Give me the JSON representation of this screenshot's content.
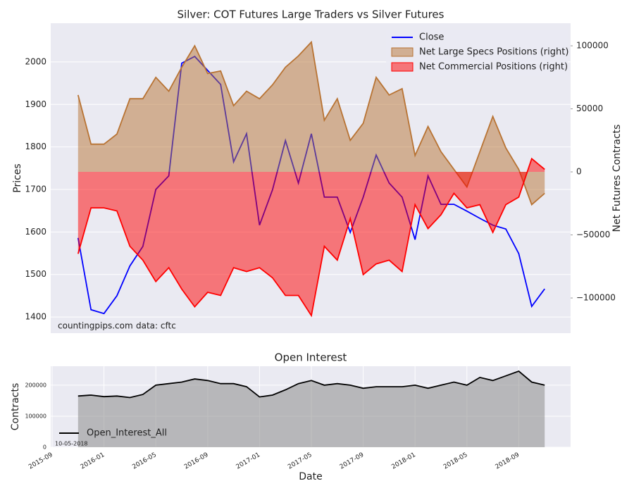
{
  "chart_data": [
    {
      "type": "line",
      "title": "Silver: COT Futures Large Traders vs Silver Futures",
      "ylabel": "Prices",
      "y2label": "Net Futures Contracts",
      "annotations": [
        "countingpips.com",
        "data: cftc"
      ],
      "x": [
        "2015-11",
        "2015-12",
        "2016-01",
        "2016-02",
        "2016-03",
        "2016-04",
        "2016-05",
        "2016-06",
        "2016-07",
        "2016-08",
        "2016-09",
        "2016-10",
        "2016-11",
        "2016-12",
        "2017-01",
        "2017-02",
        "2017-03",
        "2017-04",
        "2017-05",
        "2017-06",
        "2017-07",
        "2017-08",
        "2017-09",
        "2017-10",
        "2017-11",
        "2017-12",
        "2018-01",
        "2018-02",
        "2018-03",
        "2018-04",
        "2018-05",
        "2018-06",
        "2018-07",
        "2018-08",
        "2018-09",
        "2018-10",
        "2018-11"
      ],
      "xlim": [
        "2015-09",
        "2019-01"
      ],
      "ylim": [
        1362,
        2091
      ],
      "yticks": [
        1400,
        1500,
        1600,
        1700,
        1800,
        1900,
        2000
      ],
      "y2lim": [
        -127900,
        117900
      ],
      "y2ticks": [
        {
          "value": -100000,
          "label": "−100000"
        },
        {
          "value": -50000,
          "label": "−50000"
        },
        0,
        50000,
        100000
      ],
      "grid": true,
      "legend": "upper right",
      "series": [
        {
          "name": "Close",
          "color": "#0000ff",
          "values": [
            1586,
            1417,
            1408,
            1450,
            1520,
            1566,
            1700,
            1732,
            1997,
            2013,
            1980,
            1947,
            1765,
            1831,
            1616,
            1699,
            1815,
            1715,
            1831,
            1682,
            1682,
            1599,
            1682,
            1781,
            1715,
            1682,
            1582,
            1732,
            1665,
            1665,
            1649,
            1632,
            1616,
            1607,
            1549,
            1425,
            1466
          ]
        },
        {
          "name": "Net Large Specs Positions (right)",
          "color": "#b87333",
          "axis": "y2",
          "fill": true,
          "values": [
            61000,
            22000,
            22000,
            30000,
            58000,
            58000,
            75000,
            64000,
            83000,
            100000,
            78000,
            80000,
            52500,
            64000,
            58000,
            69000,
            83000,
            92000,
            103000,
            41000,
            58000,
            25000,
            38500,
            75000,
            61000,
            66000,
            13000,
            36000,
            16000,
            2000,
            -12000,
            16000,
            44000,
            19000,
            2000,
            -26000,
            -17000
          ]
        },
        {
          "name": "Net Commercial Positions (right)",
          "color": "#ff0000",
          "axis": "y2",
          "fill": true,
          "values": [
            -65000,
            -28500,
            -28500,
            -31000,
            -59000,
            -70000,
            -87000,
            -76000,
            -93000,
            -107000,
            -95500,
            -98000,
            -76000,
            -79000,
            -76000,
            -84000,
            -98000,
            -98000,
            -114000,
            -59000,
            -70000,
            -37000,
            -81500,
            -73000,
            -70000,
            -79000,
            -26000,
            -45000,
            -34000,
            -17000,
            -28500,
            -26000,
            -48000,
            -26000,
            -20000,
            10500,
            2000
          ]
        }
      ]
    },
    {
      "type": "line",
      "title": "Open Interest",
      "xlabel": "Date",
      "ylabel": "Contracts",
      "annotation": "10-05-2018",
      "x": [
        "2015-11",
        "2015-12",
        "2016-01",
        "2016-02",
        "2016-03",
        "2016-04",
        "2016-05",
        "2016-06",
        "2016-07",
        "2016-08",
        "2016-09",
        "2016-10",
        "2016-11",
        "2016-12",
        "2017-01",
        "2017-02",
        "2017-03",
        "2017-04",
        "2017-05",
        "2017-06",
        "2017-07",
        "2017-08",
        "2017-09",
        "2017-10",
        "2017-11",
        "2017-12",
        "2018-01",
        "2018-02",
        "2018-03",
        "2018-04",
        "2018-05",
        "2018-06",
        "2018-07",
        "2018-08",
        "2018-09",
        "2018-10",
        "2018-11"
      ],
      "xlim": [
        "2015-09",
        "2019-01"
      ],
      "xticks": [
        "2015-09",
        "2016-01",
        "2016-05",
        "2016-09",
        "2017-01",
        "2017-05",
        "2017-09",
        "2018-01",
        "2018-05",
        "2018-09"
      ],
      "ylim": [
        0,
        261000
      ],
      "yticks": [
        0,
        100000,
        200000
      ],
      "grid": true,
      "legend": "lower left",
      "series": [
        {
          "name": "Open_Interest_All",
          "color": "#000000",
          "fill": true,
          "fill_color": "#8c8c8c",
          "values": [
            165000,
            168000,
            163000,
            165000,
            160000,
            170000,
            200000,
            205000,
            210000,
            220000,
            215000,
            205000,
            205000,
            195000,
            162000,
            168000,
            185000,
            205000,
            215000,
            200000,
            205000,
            200000,
            190000,
            195000,
            195000,
            195000,
            200000,
            190000,
            200000,
            210000,
            200000,
            225000,
            215000,
            230000,
            245000,
            210000,
            200000
          ]
        }
      ]
    }
  ]
}
